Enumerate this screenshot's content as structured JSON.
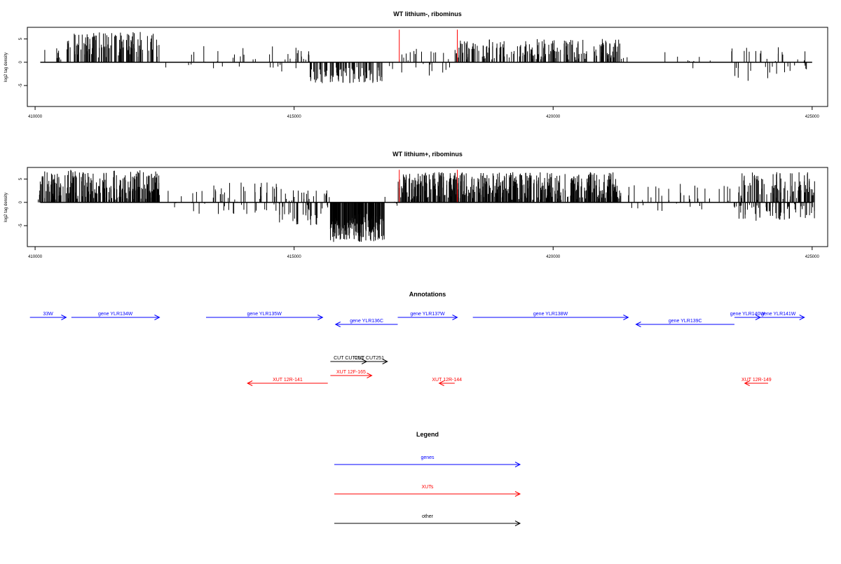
{
  "chart_data": [
    {
      "type": "bar",
      "title": "WT lithium-, ribominus",
      "xlabel": "",
      "ylabel": "log2 tag density",
      "xlim": [
        409850,
        425300
      ],
      "ylim": [
        -9.5,
        7.5
      ],
      "xticks": [
        410000,
        415000,
        420000,
        425000
      ],
      "yticks": [
        -5,
        0,
        5
      ],
      "marker_color": "#ff0000",
      "markers": [
        {
          "x": 417030,
          "y": 7.0
        },
        {
          "x": 418150,
          "y": 7.0
        }
      ],
      "segments": [
        {
          "from": 410100,
          "to": 410600,
          "density": 0.18,
          "ymin": 0,
          "ymax": 3.0
        },
        {
          "from": 410600,
          "to": 412400,
          "density": 0.9,
          "ymin": 1.0,
          "ymax": 6.5
        },
        {
          "from": 412400,
          "to": 413200,
          "density": 0.08,
          "ymin": -1.5,
          "ymax": 3.0
        },
        {
          "from": 413200,
          "to": 414500,
          "density": 0.15,
          "ymin": -1.5,
          "ymax": 3.5
        },
        {
          "from": 414500,
          "to": 415300,
          "density": 0.4,
          "ymin": -2.0,
          "ymax": 3.5
        },
        {
          "from": 415300,
          "to": 416750,
          "density": 0.75,
          "ymin": -4.5,
          "ymax": -1.0
        },
        {
          "from": 416750,
          "to": 417000,
          "density": 0.1,
          "ymin": -1.5,
          "ymax": 0.5
        },
        {
          "from": 417000,
          "to": 418100,
          "density": 0.3,
          "ymin": -3.0,
          "ymax": 3.0
        },
        {
          "from": 418100,
          "to": 421300,
          "density": 0.85,
          "ymin": 0.5,
          "ymax": 5.0
        },
        {
          "from": 421300,
          "to": 423400,
          "density": 0.08,
          "ymin": -1.5,
          "ymax": 2.5
        },
        {
          "from": 423400,
          "to": 425000,
          "density": 0.35,
          "ymin": -4.0,
          "ymax": 3.5
        }
      ]
    },
    {
      "type": "bar",
      "title": "WT lithium+, ribominus",
      "xlabel": "",
      "ylabel": "log2 tag density",
      "xlim": [
        409850,
        425300
      ],
      "ylim": [
        -9.5,
        7.5
      ],
      "xticks": [
        410000,
        415000,
        420000,
        425000
      ],
      "yticks": [
        -5,
        0,
        5
      ],
      "marker_color": "#ff0000",
      "markers": [
        {
          "x": 417030,
          "y": 7.0
        },
        {
          "x": 418150,
          "y": 7.0
        }
      ],
      "segments": [
        {
          "from": 410050,
          "to": 412400,
          "density": 1.5,
          "ymin": 0.5,
          "ymax": 7.0
        },
        {
          "from": 412400,
          "to": 413400,
          "density": 0.15,
          "ymin": -2.5,
          "ymax": 2.5
        },
        {
          "from": 413400,
          "to": 414700,
          "density": 0.5,
          "ymin": -2.5,
          "ymax": 4.5
        },
        {
          "from": 414700,
          "to": 415700,
          "density": 0.8,
          "ymin": -5.0,
          "ymax": 3.0
        },
        {
          "from": 415700,
          "to": 416750,
          "density": 2.5,
          "ymin": -8.5,
          "ymax": -2.5
        },
        {
          "from": 416750,
          "to": 417000,
          "density": 0.2,
          "ymin": -2.0,
          "ymax": 2.0
        },
        {
          "from": 417000,
          "to": 421300,
          "density": 1.6,
          "ymin": 0.5,
          "ymax": 6.5
        },
        {
          "from": 421300,
          "to": 423500,
          "density": 0.25,
          "ymin": -2.0,
          "ymax": 4.0
        },
        {
          "from": 423500,
          "to": 425050,
          "density": 1.4,
          "ymin": -4.0,
          "ymax": 6.5
        }
      ]
    }
  ],
  "annotations": {
    "title": "Annotations",
    "xlim": [
      409850,
      425300
    ],
    "features": [
      {
        "label": "33W",
        "x1": 409900,
        "x2": 410600,
        "row": 0,
        "kind": "gene",
        "strand": "+"
      },
      {
        "label": "gene YLR134W",
        "x1": 410700,
        "x2": 412400,
        "row": 0,
        "kind": "gene",
        "strand": "+"
      },
      {
        "label": "gene YLR135W",
        "x1": 413300,
        "x2": 415550,
        "row": 0,
        "kind": "gene",
        "strand": "+"
      },
      {
        "label": "gene YLR136C",
        "x1": 415800,
        "x2": 417000,
        "row": 1,
        "kind": "gene",
        "strand": "-"
      },
      {
        "label": "gene YLR137W",
        "x1": 417000,
        "x2": 418150,
        "row": 0,
        "kind": "gene",
        "strand": "+"
      },
      {
        "label": "gene YLR138W",
        "x1": 418450,
        "x2": 421450,
        "row": 0,
        "kind": "gene",
        "strand": "+"
      },
      {
        "label": "gene YLR139C",
        "x1": 421600,
        "x2": 423500,
        "row": 1,
        "kind": "gene",
        "strand": "-"
      },
      {
        "label": "gene YLR140W",
        "x1": 423500,
        "x2": 424000,
        "row": 0,
        "kind": "gene",
        "strand": "+"
      },
      {
        "label": "gene YLR141W",
        "x1": 423850,
        "x2": 424850,
        "row": 0,
        "kind": "gene",
        "strand": "+"
      },
      {
        "label": "CUT CUT250",
        "x1": 415700,
        "x2": 416400,
        "row": 3,
        "kind": "other",
        "strand": "+"
      },
      {
        "label": "CUT CUT251",
        "x1": 416100,
        "x2": 416800,
        "row": 3,
        "kind": "other",
        "strand": "+"
      },
      {
        "label": "XUT 12R-141",
        "x1": 414100,
        "x2": 415650,
        "row": 4,
        "kind": "xut",
        "strand": "-"
      },
      {
        "label": "XUT 12F-165",
        "x1": 415700,
        "x2": 416500,
        "row": 5,
        "kind": "xut",
        "strand": "+"
      },
      {
        "label": "XUT 12R-144",
        "x1": 417800,
        "x2": 418100,
        "row": 4,
        "kind": "xut",
        "strand": "-"
      },
      {
        "label": "XUT 12R-149",
        "x1": 423700,
        "x2": 424150,
        "row": 4,
        "kind": "xut",
        "strand": "-"
      }
    ]
  },
  "legend": {
    "title": "Legend",
    "items": [
      {
        "label": "genes",
        "color": "#0000ff"
      },
      {
        "label": "XUTs",
        "color": "#ff0000"
      },
      {
        "label": "other",
        "color": "#000000"
      }
    ]
  },
  "colors": {
    "gene": "#0000ff",
    "xut": "#ff0000",
    "other": "#000000",
    "bars": "#000000"
  }
}
